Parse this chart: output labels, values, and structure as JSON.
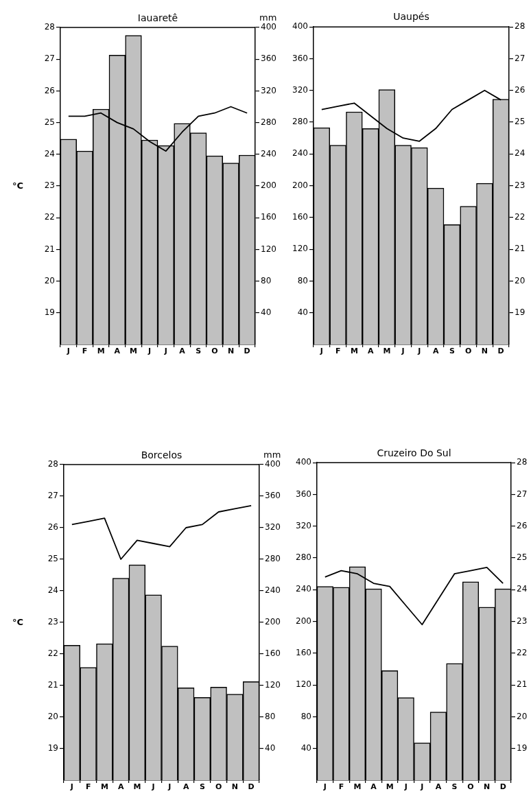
{
  "chart_data": [
    {
      "type": "bar",
      "title": "Iauaretê",
      "ylabel": "°C",
      "y2label": "mm",
      "categories": [
        "J",
        "F",
        "M",
        "A",
        "M",
        "J",
        "J",
        "A",
        "S",
        "O",
        "N",
        "D"
      ],
      "series": [
        {
          "axis": "y2",
          "color": "#c0c0c0",
          "values": [
            259,
            244,
            297,
            365,
            390,
            258,
            251,
            279,
            267,
            238,
            229,
            239
          ]
        },
        {
          "type": "line",
          "axis": "y",
          "color": "#000000",
          "values": [
            25.2,
            25.2,
            25.3,
            25.0,
            24.8,
            24.4,
            24.1,
            24.7,
            25.2,
            25.3,
            25.5,
            25.3
          ]
        }
      ],
      "ylim": [
        18,
        28
      ],
      "yticks": [
        19,
        20,
        21,
        22,
        23,
        24,
        25,
        26,
        27,
        28
      ],
      "y2lim": [
        0,
        400
      ],
      "y2ticks": [
        40,
        80,
        120,
        160,
        200,
        240,
        280,
        320,
        360,
        400
      ],
      "grid": false,
      "legend": false
    },
    {
      "type": "bar",
      "title": "Uaupés",
      "categories": [
        "J",
        "F",
        "M",
        "A",
        "M",
        "J",
        "J",
        "A",
        "S",
        "O",
        "N",
        "D"
      ],
      "series": [
        {
          "axis": "y2",
          "color": "#c0c0c0",
          "values": [
            273,
            251,
            293,
            272,
            321,
            251,
            248,
            197,
            151,
            174,
            203,
            309
          ]
        },
        {
          "type": "line",
          "axis": "y",
          "color": "#000000",
          "values": [
            25.4,
            25.5,
            25.6,
            25.2,
            24.8,
            24.5,
            24.4,
            24.8,
            25.4,
            25.7,
            26.0,
            25.7
          ]
        }
      ],
      "ylim": [
        18,
        28
      ],
      "yticks": [
        19,
        20,
        21,
        22,
        23,
        24,
        25,
        26,
        27,
        28
      ],
      "y2lim": [
        0,
        400
      ],
      "y2ticks": [
        40,
        80,
        120,
        160,
        200,
        240,
        280,
        320,
        360,
        400
      ],
      "grid": false,
      "legend": false
    },
    {
      "type": "bar",
      "title": "Borcelos",
      "ylabel": "°C",
      "y2label": "mm",
      "categories": [
        "J",
        "F",
        "M",
        "A",
        "M",
        "J",
        "J",
        "A",
        "S",
        "O",
        "N",
        "D"
      ],
      "series": [
        {
          "axis": "y2",
          "color": "#c0c0c0",
          "values": [
            171,
            143,
            173,
            256,
            273,
            235,
            170,
            117,
            105,
            118,
            109,
            125
          ]
        },
        {
          "type": "line",
          "axis": "y",
          "color": "#000000",
          "values": [
            26.1,
            26.2,
            26.3,
            25.0,
            25.6,
            25.5,
            25.4,
            26.0,
            26.1,
            26.5,
            26.6,
            26.7
          ]
        }
      ],
      "ylim": [
        18,
        28
      ],
      "yticks": [
        19,
        20,
        21,
        22,
        23,
        24,
        25,
        26,
        27,
        28
      ],
      "y2lim": [
        0,
        400
      ],
      "y2ticks": [
        40,
        80,
        120,
        160,
        200,
        240,
        280,
        320,
        360,
        400
      ],
      "grid": false,
      "legend": false
    },
    {
      "type": "bar",
      "title": "Cruzeiro Do Sul",
      "categories": [
        "J",
        "F",
        "M",
        "A",
        "M",
        "J",
        "J",
        "A",
        "S",
        "O",
        "N",
        "D"
      ],
      "series": [
        {
          "axis": "y2",
          "color": "#c0c0c0",
          "values": [
            244,
            243,
            269,
            241,
            138,
            104,
            47,
            86,
            147,
            250,
            218,
            241
          ]
        },
        {
          "type": "line",
          "axis": "y",
          "color": "#000000",
          "values": [
            24.4,
            24.6,
            24.5,
            24.2,
            24.1,
            23.5,
            22.9,
            23.7,
            24.5,
            24.6,
            24.7,
            24.2
          ]
        }
      ],
      "ylim": [
        18,
        28
      ],
      "yticks": [
        19,
        20,
        21,
        22,
        23,
        24,
        25,
        26,
        27,
        28
      ],
      "y2lim": [
        0,
        400
      ],
      "y2ticks": [
        40,
        80,
        120,
        160,
        200,
        240,
        280,
        320,
        360,
        400
      ],
      "grid": false,
      "legend": false
    }
  ]
}
